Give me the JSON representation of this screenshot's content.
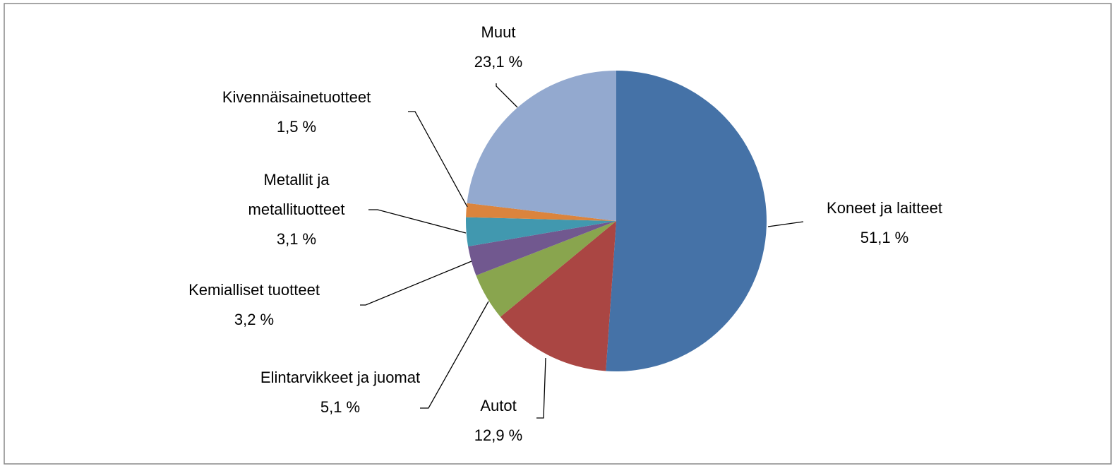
{
  "chart_data": {
    "type": "pie",
    "categories": [
      "Koneet ja laitteet",
      "Autot",
      "Elintarvikkeet ja juomat",
      "Kemialliset tuotteet",
      "Metallit ja metallituotteet",
      "Kivennäisainetuotteet",
      "Muut"
    ],
    "values": [
      51.1,
      12.9,
      5.1,
      3.2,
      3.1,
      1.5,
      23.1
    ],
    "value_labels": [
      "51,1 %",
      "12,9 %",
      "5,1 %",
      "3,2 %",
      "3,1 %",
      "1,5 %",
      "23,1 %"
    ],
    "colors": [
      "#4572a7",
      "#aa4643",
      "#89a54e",
      "#71588f",
      "#4198af",
      "#db843d",
      "#93a9cf"
    ]
  }
}
